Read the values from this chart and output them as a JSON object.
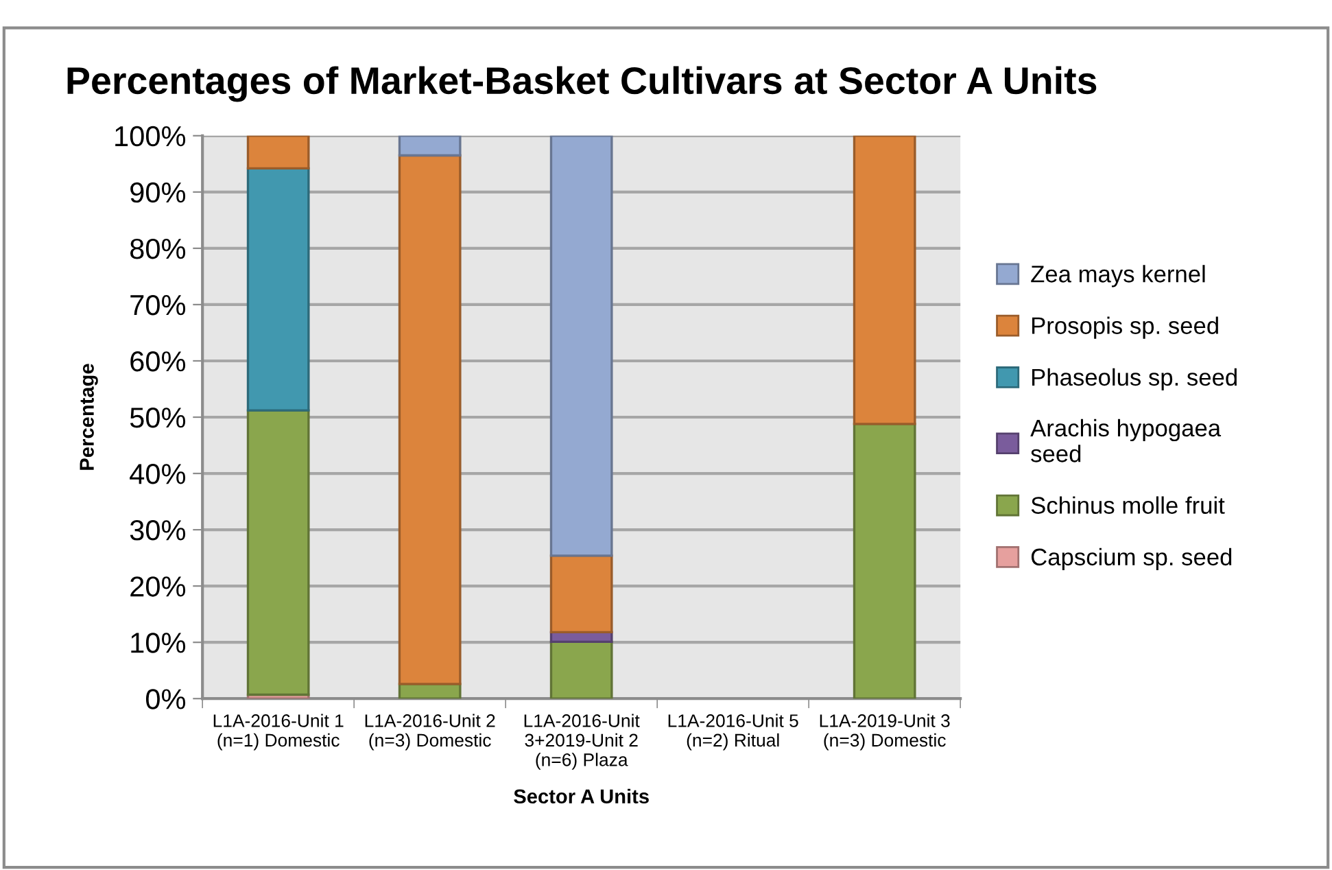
{
  "chart_data": {
    "type": "bar",
    "stacked": true,
    "title": "Percentages of Market-Basket Cultivars at Sector A Units",
    "xlabel": "Sector A Units",
    "ylabel": "Percentage",
    "categories": [
      "L1A-2016-Unit 1\n(n=1) Domestic",
      "L1A-2016-Unit 2\n(n=3) Domestic",
      "L1A-2016-Unit\n3+2019-Unit 2\n(n=6) Plaza",
      "L1A-2016-Unit 5\n(n=2) Ritual",
      "L1A-2019-Unit 3\n(n=3) Domestic"
    ],
    "series": [
      {
        "name": "Capscium sp. seed",
        "color": "#e6a09e",
        "values": [
          0.7,
          null,
          null,
          null,
          null
        ]
      },
      {
        "name": "Schinus molle fruit",
        "color": "#8aa64d",
        "values": [
          50.5,
          2.6,
          10.1,
          null,
          48.8
        ]
      },
      {
        "name": "Arachis hypogaea\nseed",
        "color": "#7a5c9c",
        "values": [
          null,
          null,
          1.7,
          null,
          null
        ]
      },
      {
        "name": "Phaseolus sp. seed",
        "color": "#4198af",
        "values": [
          43.0,
          null,
          null,
          null,
          null
        ]
      },
      {
        "name": "Prosopis sp. seed",
        "color": "#dc843c",
        "values": [
          5.8,
          93.9,
          13.6,
          null,
          51.2
        ]
      },
      {
        "name": "Zea mays kernel",
        "color": "#94a9d1",
        "values": [
          null,
          3.5,
          74.6,
          null,
          null
        ]
      }
    ],
    "ylim": [
      0,
      100
    ],
    "yticks": [
      {
        "value": 0,
        "label": "0%"
      },
      {
        "value": 10,
        "label": "10%"
      },
      {
        "value": 20,
        "label": "20%"
      },
      {
        "value": 30,
        "label": "30%"
      },
      {
        "value": 40,
        "label": "40%"
      },
      {
        "value": 50,
        "label": "50%"
      },
      {
        "value": 60,
        "label": "60%"
      },
      {
        "value": 70,
        "label": "70%"
      },
      {
        "value": 80,
        "label": "80%"
      },
      {
        "value": 90,
        "label": "90%"
      },
      {
        "value": 100,
        "label": "100%"
      }
    ],
    "grid": "y",
    "legend": "right"
  }
}
